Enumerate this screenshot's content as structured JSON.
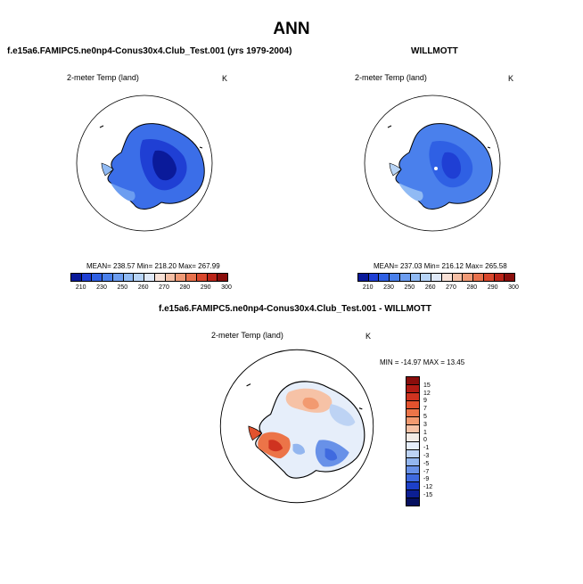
{
  "title": "ANN",
  "panels": {
    "left": {
      "case": "f.e15a6.FAMIPC5.ne0np4-Conus30x4.Club_Test.001 (yrs 1979-2004)",
      "variable": "2-meter Temp (land)",
      "units": "K",
      "stats": "MEAN= 238.57  Min= 218.20  Max= 267.99"
    },
    "right": {
      "case": "WILLMOTT",
      "variable": "2-meter Temp (land)",
      "units": "K",
      "stats": "MEAN= 237.03  Min= 216.12  Max= 265.58"
    },
    "diff": {
      "case": "f.e15a6.FAMIPC5.ne0np4-Conus30x4.Club_Test.001 - WILLMOTT",
      "variable": "2-meter Temp (land)",
      "units": "K",
      "stats": "MIN = -14.97 MAX =  13.45"
    }
  },
  "colorbar_abs": {
    "colors": [
      "#0a1a9a",
      "#1f3fd4",
      "#2f60e4",
      "#4a80ec",
      "#6c9df0",
      "#90baf4",
      "#b7d4f7",
      "#dfe9f8",
      "#f8e1d6",
      "#f5bfa5",
      "#f09a76",
      "#e8714c",
      "#d9472c",
      "#bb2418",
      "#8a0e0c"
    ],
    "labels": [
      "210",
      "230",
      "250",
      "260",
      "270",
      "280",
      "290",
      "300"
    ]
  },
  "colorbar_diff": {
    "colors": [
      "#8a0e0c",
      "#b11b14",
      "#cf3320",
      "#e2522e",
      "#ec7448",
      "#f29a70",
      "#f6c2a6",
      "#f3ece6",
      "#e6eefa",
      "#bdd3f4",
      "#93b6ef",
      "#6891e8",
      "#3f6adf",
      "#1d40c9",
      "#0c1f93",
      "#06105f"
    ],
    "labels": [
      "15",
      "12",
      "9",
      "7",
      "5",
      "3",
      "1",
      "0",
      "-1",
      "-3",
      "-5",
      "-7",
      "-9",
      "-12",
      "-15"
    ]
  }
}
